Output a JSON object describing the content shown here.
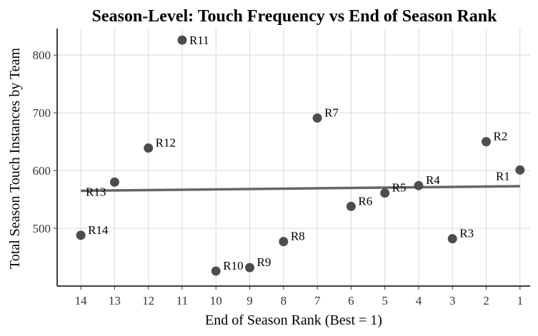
{
  "chart_data": {
    "type": "scatter",
    "title": "Season-Level: Touch Frequency vs End of Season Rank",
    "xlabel": "End of Season Rank (Best = 1)",
    "ylabel": "Total Season Touch Instances by Team",
    "x_reversed": true,
    "xlim": [
      14.7,
      0.7
    ],
    "ylim": [
      400,
      846
    ],
    "xticks": [
      14,
      13,
      12,
      11,
      10,
      9,
      8,
      7,
      6,
      5,
      4,
      3,
      2,
      1
    ],
    "yticks": [
      500,
      600,
      700,
      800
    ],
    "grid": true,
    "colors": {
      "point": "#4d4d4d",
      "trend": "#666666",
      "grid": "#d9d9d9",
      "axis": "#000000"
    },
    "points": [
      {
        "label": "R1",
        "x": 1,
        "y": 601
      },
      {
        "label": "R2",
        "x": 2,
        "y": 650
      },
      {
        "label": "R3",
        "x": 3,
        "y": 482
      },
      {
        "label": "R4",
        "x": 4,
        "y": 574
      },
      {
        "label": "R5",
        "x": 5,
        "y": 561
      },
      {
        "label": "R6",
        "x": 6,
        "y": 538
      },
      {
        "label": "R7",
        "x": 7,
        "y": 691
      },
      {
        "label": "R8",
        "x": 8,
        "y": 477
      },
      {
        "label": "R9",
        "x": 9,
        "y": 432
      },
      {
        "label": "R10",
        "x": 10,
        "y": 426
      },
      {
        "label": "R11",
        "x": 11,
        "y": 826
      },
      {
        "label": "R12",
        "x": 12,
        "y": 639
      },
      {
        "label": "R13",
        "x": 13,
        "y": 580
      },
      {
        "label": "R14",
        "x": 14,
        "y": 488
      }
    ],
    "trendline": {
      "x": [
        14,
        1
      ],
      "y": [
        565,
        573
      ]
    }
  }
}
